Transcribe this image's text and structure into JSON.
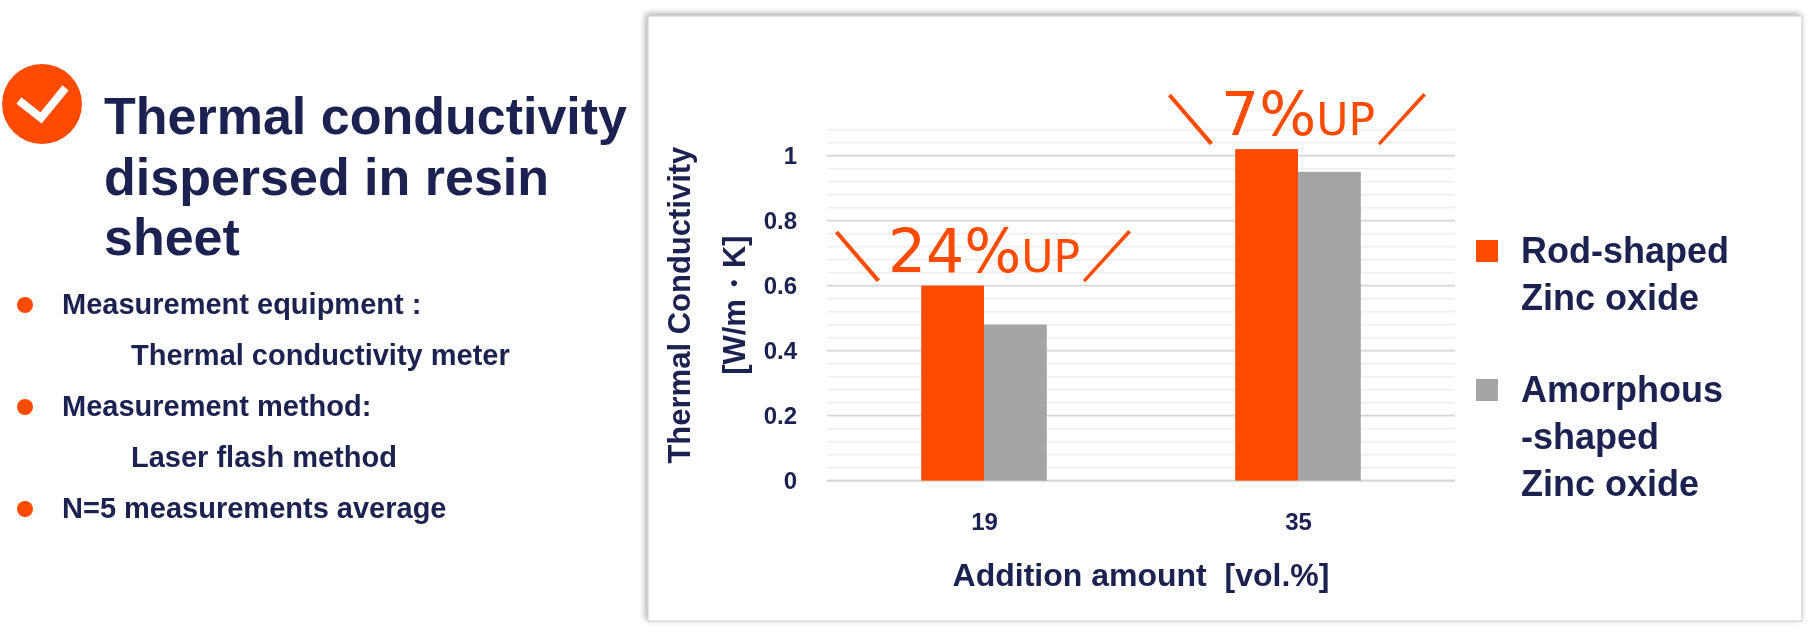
{
  "chart_data": {
    "type": "bar",
    "title": "Thermal conductivity dispersed in resin sheet",
    "categories": [
      "19",
      "35"
    ],
    "series": [
      {
        "name": "Rod-shaped Zinc oxide",
        "color": "#ff4b00",
        "values": [
          0.6,
          1.02
        ]
      },
      {
        "name": "Amorphous-shaped Zinc oxide",
        "color": "#a5a5a5",
        "values": [
          0.48,
          0.95
        ]
      }
    ],
    "xlabel": "Addition amount  [vol.%]",
    "ylabel": "Thermal Conductivity [W/m・K]",
    "ylim": [
      0,
      1.08
    ],
    "yticks": [
      0,
      {
        "value": 0.04,
        "label": null
      },
      {
        "value": 0.08,
        "label": null
      },
      {
        "value": 0.12,
        "label": null
      },
      {
        "value": 0.16,
        "label": null
      },
      0.2,
      {
        "value": 0.24,
        "label": null
      },
      {
        "value": 0.28,
        "label": null
      },
      {
        "value": 0.32,
        "label": null
      },
      {
        "value": 0.36,
        "label": null
      },
      0.4,
      {
        "value": 0.44,
        "label": null
      },
      {
        "value": 0.48,
        "label": null
      },
      {
        "value": 0.52,
        "label": null
      },
      {
        "value": 0.56,
        "label": null
      },
      0.6,
      {
        "value": 0.64,
        "label": null
      },
      {
        "value": 0.68,
        "label": null
      },
      {
        "value": 0.72,
        "label": null
      },
      {
        "value": 0.76,
        "label": null
      },
      0.8,
      {
        "value": 0.84,
        "label": null
      },
      {
        "value": 0.88,
        "label": null
      },
      {
        "value": 0.92,
        "label": null
      },
      {
        "value": 0.96,
        "label": null
      },
      1,
      {
        "value": 1.04,
        "label": null
      },
      {
        "value": 1.08,
        "label": null
      }
    ],
    "grid": "y",
    "legend": "right",
    "annotations": [
      {
        "text": "＼24%UP／",
        "x": "19",
        "y": 0.6
      },
      {
        "text": "＼7%UP／",
        "x": "35",
        "y": 1.02
      },
      "Measurement equipment :\nThermal conductivity meter",
      "Measurement method:\nLaser flash method",
      "N=5 measurements average"
    ]
  }
}
